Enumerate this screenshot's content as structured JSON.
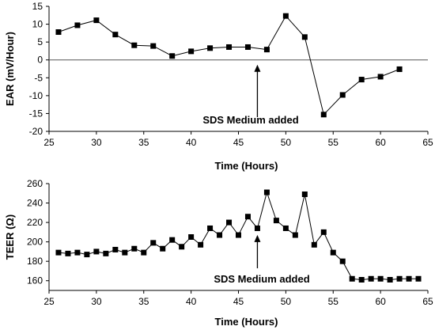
{
  "chart_data": [
    {
      "type": "line",
      "xlabel": "Time (Hours)",
      "ylabel": "EAR (mV/Hour)",
      "xlim": [
        25,
        65
      ],
      "ylim": [
        -20,
        15
      ],
      "xticks": [
        25,
        30,
        35,
        40,
        45,
        50,
        55,
        60,
        65
      ],
      "yticks": [
        15,
        10,
        5,
        0,
        -5,
        -10,
        -15,
        -20
      ],
      "x_tick_labels": [
        "25",
        "30",
        "35",
        "40",
        "45",
        "50",
        "55",
        "60",
        "65"
      ],
      "y_tick_labels": [
        "15",
        "10",
        "5",
        "0",
        "-5",
        "-10",
        "-15",
        "-20"
      ],
      "zero_line": true,
      "grid": false,
      "series": [
        {
          "x": [
            26,
            28,
            30,
            32,
            34,
            36,
            38,
            40,
            42,
            44,
            46,
            48,
            50,
            52,
            54,
            56,
            58,
            60,
            62
          ],
          "y": [
            7.8,
            9.7,
            11.1,
            7.1,
            4.1,
            3.9,
            1.1,
            2.4,
            3.3,
            3.6,
            3.6,
            2.9,
            12.3,
            6.4,
            -15.3,
            -9.8,
            -5.5,
            -4.7,
            -2.6
          ]
        }
      ],
      "annotation": {
        "text": "SDS Medium added",
        "x": 47,
        "arrow_tip_y": 0
      }
    },
    {
      "type": "line",
      "xlabel": "Time (Hours)",
      "ylabel": "TEER (Ω)",
      "xlim": [
        25,
        65
      ],
      "ylim": [
        150,
        260
      ],
      "xticks": [
        25,
        30,
        35,
        40,
        45,
        50,
        55,
        60,
        65
      ],
      "yticks": [
        260,
        240,
        220,
        200,
        180,
        160
      ],
      "x_tick_labels": [
        "25",
        "30",
        "35",
        "40",
        "45",
        "50",
        "55",
        "60",
        "65"
      ],
      "y_tick_labels": [
        "260",
        "240",
        "220",
        "200",
        "180",
        "160"
      ],
      "grid": false,
      "series": [
        {
          "x": [
            26,
            27,
            28,
            29,
            30,
            31,
            32,
            33,
            34,
            35,
            36,
            37,
            38,
            39,
            40,
            41,
            42,
            43,
            44,
            45,
            46,
            47,
            48,
            49,
            50,
            51,
            52,
            53,
            54,
            55,
            56,
            57,
            58,
            59,
            60,
            61,
            62,
            63,
            64
          ],
          "y": [
            189,
            188,
            189,
            187,
            190,
            188,
            192,
            189,
            193,
            189,
            199,
            193,
            202,
            195,
            205,
            197,
            214,
            207,
            220,
            207,
            226,
            214,
            251,
            222,
            214,
            207,
            249,
            197,
            210,
            189,
            180,
            162,
            161,
            162,
            162,
            161,
            162,
            162,
            162
          ]
        }
      ],
      "annotation": {
        "text": "SDS Medium added",
        "x": 47,
        "arrow_tip_y": 212
      }
    }
  ]
}
